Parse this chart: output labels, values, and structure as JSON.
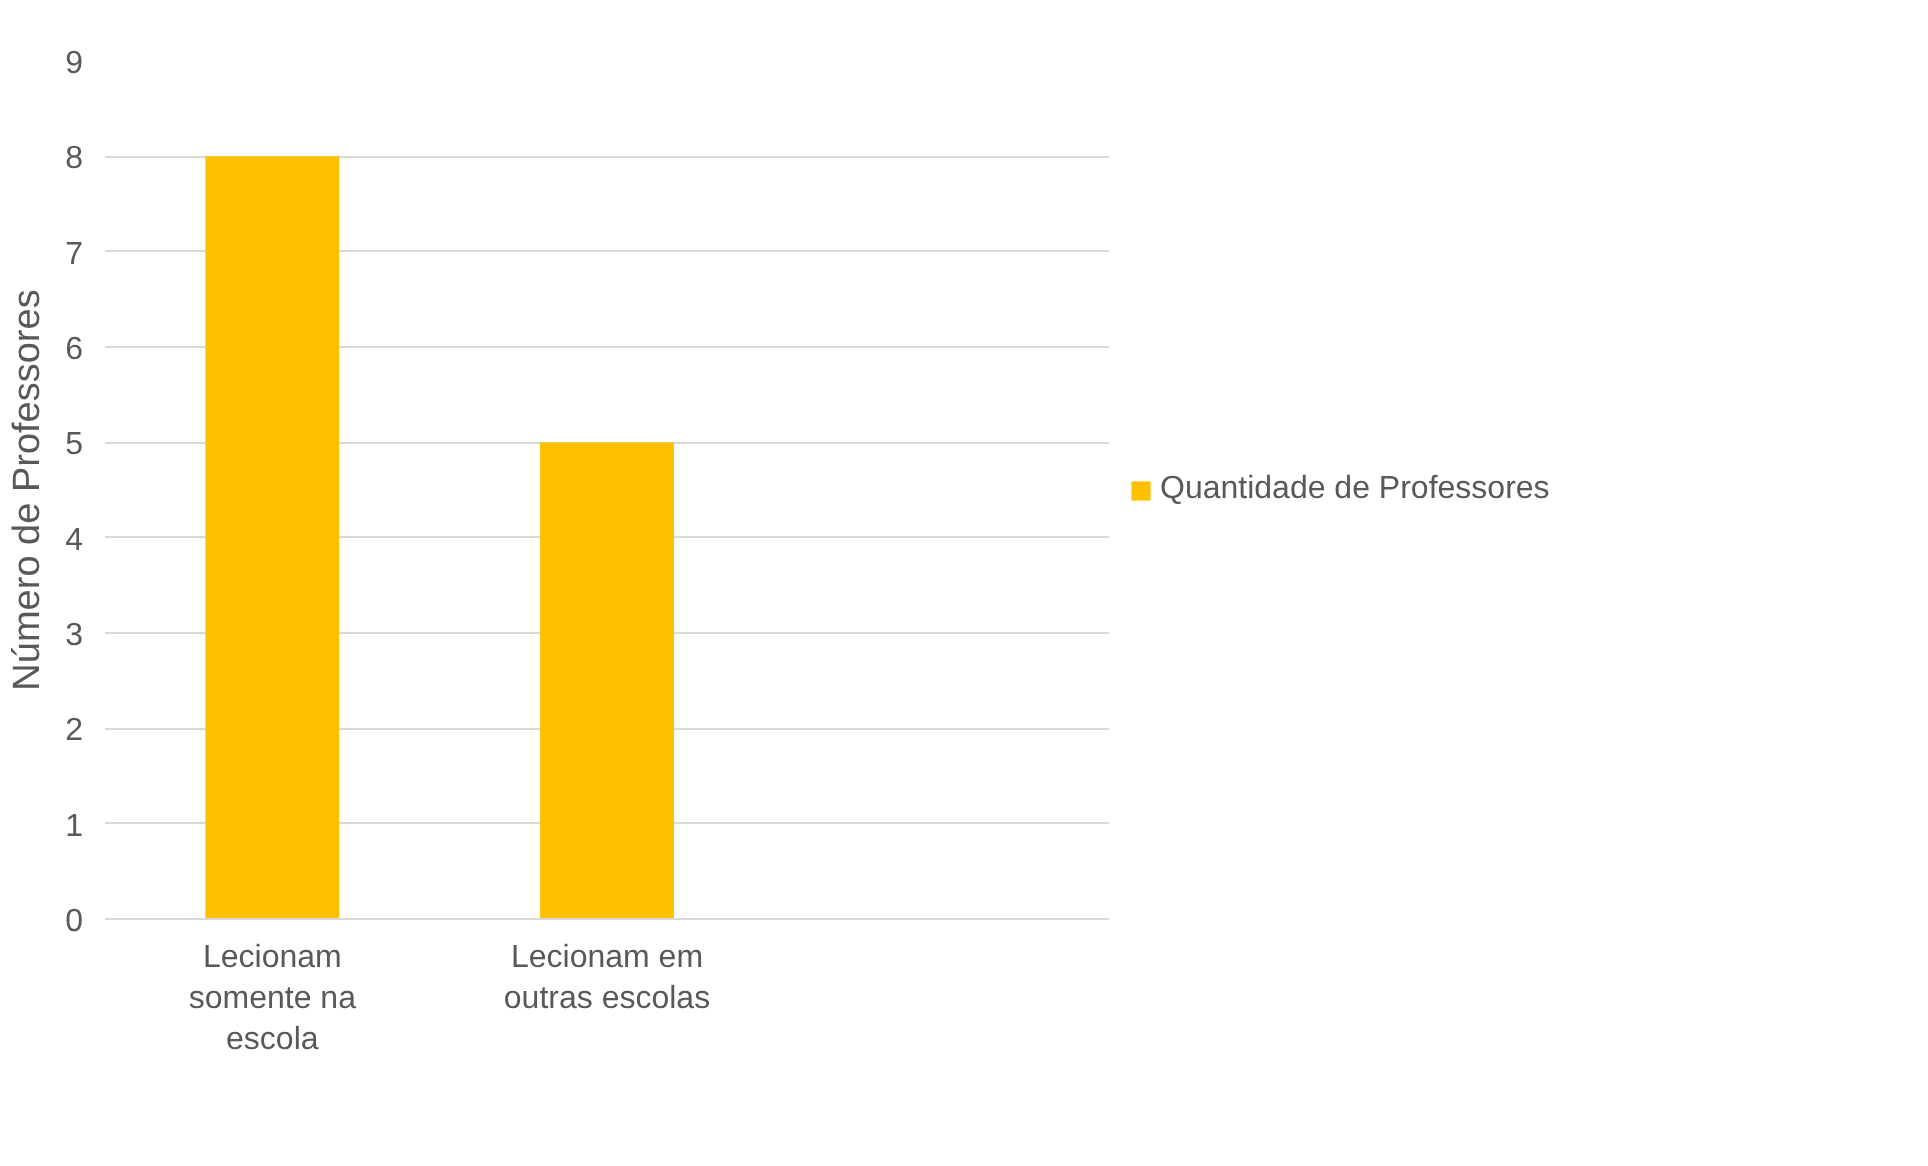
{
  "chart_data": {
    "type": "bar",
    "ylabel": "Número de Professores",
    "categories": [
      "Lecionam somente na escola",
      "Lecionam em outras escolas",
      null
    ],
    "series": [
      {
        "name": "Quantidade de Professores",
        "color": "#ffc000",
        "values": [
          8,
          5,
          null
        ]
      }
    ],
    "ylim": [
      0,
      9
    ],
    "yticks": [
      0,
      1,
      2,
      3,
      4,
      5,
      6,
      7,
      8,
      9
    ],
    "grid": "y",
    "legend": "right"
  }
}
